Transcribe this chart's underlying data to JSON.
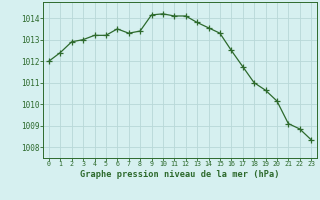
{
  "x": [
    0,
    1,
    2,
    3,
    4,
    5,
    6,
    7,
    8,
    9,
    10,
    11,
    12,
    13,
    14,
    15,
    16,
    17,
    18,
    19,
    20,
    21,
    22,
    23
  ],
  "y": [
    1012.0,
    1012.4,
    1012.9,
    1013.0,
    1013.2,
    1013.2,
    1013.5,
    1013.3,
    1013.4,
    1014.15,
    1014.2,
    1014.1,
    1014.1,
    1013.8,
    1013.55,
    1013.3,
    1012.5,
    1011.75,
    1011.0,
    1010.65,
    1010.15,
    1009.1,
    1008.85,
    1008.35
  ],
  "line_color": "#2d6a2d",
  "marker": "P",
  "marker_size": 2.5,
  "bg_color": "#d6f0f0",
  "grid_color": "#b8d8d8",
  "xlabel": "Graphe pression niveau de la mer (hPa)",
  "xlabel_color": "#2d6a2d",
  "tick_color": "#2d6a2d",
  "ylim": [
    1007.5,
    1014.75
  ],
  "yticks": [
    1008,
    1009,
    1010,
    1011,
    1012,
    1013,
    1014
  ],
  "xlim": [
    -0.5,
    23.5
  ],
  "xticks": [
    0,
    1,
    2,
    3,
    4,
    5,
    6,
    7,
    8,
    9,
    10,
    11,
    12,
    13,
    14,
    15,
    16,
    17,
    18,
    19,
    20,
    21,
    22,
    23
  ],
  "xtick_fontsize": 4.8,
  "ytick_fontsize": 5.5,
  "xlabel_fontsize": 6.2
}
